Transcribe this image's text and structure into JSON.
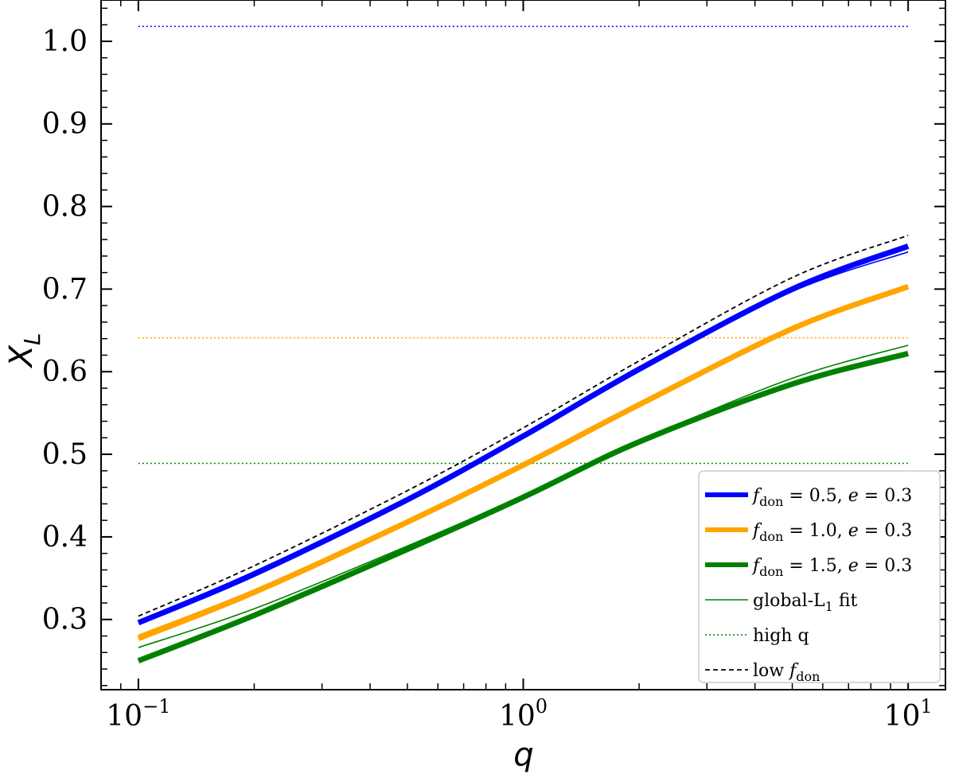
{
  "chart_data": {
    "type": "line",
    "xscale": "log",
    "xlim": [
      0.08,
      12.5
    ],
    "ylim": [
      0.215,
      1.05
    ],
    "xlabel": "q",
    "ylabel": "X_L",
    "x_ticks": [
      {
        "value": 0.1,
        "label": "10",
        "exp": "−1"
      },
      {
        "value": 1,
        "label": "10",
        "exp": "0"
      },
      {
        "value": 10,
        "label": "10",
        "exp": "1"
      }
    ],
    "y_ticks": [
      {
        "value": 0.3,
        "label": "0.3"
      },
      {
        "value": 0.4,
        "label": "0.4"
      },
      {
        "value": 0.5,
        "label": "0.5"
      },
      {
        "value": 0.6,
        "label": "0.6"
      },
      {
        "value": 0.7,
        "label": "0.7"
      },
      {
        "value": 0.8,
        "label": "0.8"
      },
      {
        "value": 0.9,
        "label": "0.9"
      },
      {
        "value": 1.0,
        "label": "1.0"
      }
    ],
    "series": [
      {
        "name": "f_don = 0.5, e = 0.3",
        "color": "#0000ff",
        "style": "thick",
        "x": [
          0.1,
          0.2,
          0.5,
          1.0,
          2.0,
          5.0,
          10.0
        ],
        "y": [
          0.296,
          0.355,
          0.445,
          0.522,
          0.603,
          0.7,
          0.752
        ]
      },
      {
        "name": "f_don = 1.0, e = 0.3",
        "color": "#ffa500",
        "style": "thick",
        "x": [
          0.1,
          0.2,
          0.5,
          1.0,
          2.0,
          5.0,
          10.0
        ],
        "y": [
          0.277,
          0.333,
          0.418,
          0.487,
          0.56,
          0.652,
          0.703
        ]
      },
      {
        "name": "f_don = 1.5, e = 0.3",
        "color": "#008000",
        "style": "thick",
        "x": [
          0.1,
          0.2,
          0.5,
          1.0,
          2.0,
          5.0,
          10.0
        ],
        "y": [
          0.25,
          0.305,
          0.385,
          0.448,
          0.515,
          0.585,
          0.622
        ]
      },
      {
        "name": "global-L1 fit (f_don=0.5)",
        "color": "#0000ff",
        "style": "thin",
        "x": [
          0.1,
          0.2,
          0.5,
          1.0,
          2.0,
          5.0,
          10.0
        ],
        "y": [
          0.298,
          0.358,
          0.447,
          0.522,
          0.601,
          0.697,
          0.745
        ]
      },
      {
        "name": "global-L1 fit (f_don=1.0)",
        "color": "#ffa500",
        "style": "thin",
        "x": [
          0.1,
          0.2,
          0.5,
          1.0,
          2.0,
          5.0,
          10.0
        ],
        "y": [
          0.281,
          0.336,
          0.419,
          0.487,
          0.559,
          0.651,
          0.703
        ]
      },
      {
        "name": "global-L1 fit (f_don=1.5)",
        "color": "#008000",
        "style": "thin",
        "x": [
          0.1,
          0.2,
          0.5,
          1.0,
          2.0,
          5.0,
          10.0
        ],
        "y": [
          0.266,
          0.313,
          0.389,
          0.45,
          0.516,
          0.592,
          0.632
        ]
      },
      {
        "name": "low f_don",
        "color": "#000000",
        "style": "dashed",
        "x": [
          0.1,
          0.2,
          0.5,
          1.0,
          2.0,
          5.0,
          10.0
        ],
        "y": [
          0.304,
          0.365,
          0.456,
          0.532,
          0.613,
          0.714,
          0.765
        ]
      }
    ],
    "hlines": [
      {
        "name": "high q (f_don=0.5)",
        "color": "#0000ff",
        "y": 1.018,
        "x0": 0.1,
        "x1": 10.0
      },
      {
        "name": "high q (f_don=1.0)",
        "color": "#ffa500",
        "y": 0.641,
        "x0": 0.1,
        "x1": 10.0
      },
      {
        "name": "high q (f_don=1.5)",
        "color": "#008000",
        "y": 0.489,
        "x0": 0.1,
        "x1": 10.0
      }
    ],
    "legend": {
      "position": "lower right",
      "entries": [
        {
          "style": "thick",
          "color": "#0000ff",
          "f": "f",
          "sub": "don",
          "text": " = 0.5, ",
          "e": "e",
          "etext": " = 0.3"
        },
        {
          "style": "thick",
          "color": "#ffa500",
          "f": "f",
          "sub": "don",
          "text": " = 1.0, ",
          "e": "e",
          "etext": " = 0.3"
        },
        {
          "style": "thick",
          "color": "#008000",
          "f": "f",
          "sub": "don",
          "text": " = 1.5, ",
          "e": "e",
          "etext": " = 0.3"
        },
        {
          "style": "thin",
          "color": "#008000",
          "label": "global-L",
          "sub": "1",
          "tail": " fit"
        },
        {
          "style": "dotted",
          "color": "#008000",
          "label": "high q"
        },
        {
          "style": "dashed",
          "color": "#000000",
          "label": "low ",
          "f": "f",
          "sub": "don"
        }
      ]
    }
  }
}
